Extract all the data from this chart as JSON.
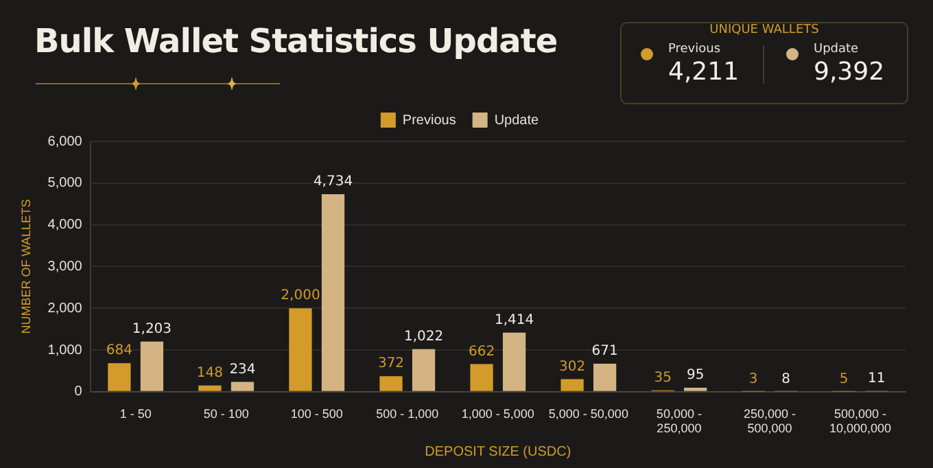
{
  "chart_data": {
    "type": "bar",
    "title": "Bulk Wallet Statistics Update",
    "xlabel": "DEPOSIT SIZE (USDC)",
    "ylabel": "NUMBER OF WALLETS",
    "categories": [
      "1 - 50",
      "50 - 100",
      "100 - 500",
      "500 - 1,000",
      "1,000 - 5,000",
      "5,000 - 50,000",
      "50,000 - 250,000",
      "250,000 - 500,000",
      "500,000 - 10,000,000"
    ],
    "series": [
      {
        "name": "Previous",
        "color": "#d39b2a",
        "values": [
          684,
          148,
          2000,
          372,
          662,
          302,
          35,
          3,
          5
        ],
        "value_labels": [
          "684",
          "148",
          "2,000",
          "372",
          "662",
          "302",
          "35",
          "3",
          "5"
        ]
      },
      {
        "name": "Update",
        "color": "#d4b483",
        "values": [
          1203,
          234,
          4734,
          1022,
          1414,
          671,
          95,
          8,
          11
        ],
        "value_labels": [
          "1,203",
          "234",
          "4,734",
          "1,022",
          "1,414",
          "671",
          "95",
          "8",
          "11"
        ]
      }
    ],
    "ylim": [
      0,
      6000
    ],
    "yticks": [
      0,
      {
        "value": 1000,
        "label": "1,000"
      },
      {
        "value": 2000,
        "label": "2,000"
      },
      {
        "value": 3000,
        "label": "3,000"
      },
      {
        "value": 4000,
        "label": "4,000"
      },
      {
        "value": 5000,
        "label": "5,000"
      },
      {
        "value": 6000,
        "label": "6,000"
      }
    ],
    "grid": "y",
    "legend": "top",
    "annotations": [
      "UNIQUE WALLETS",
      "Previous",
      "4,211",
      "Update",
      "9,392"
    ]
  }
}
